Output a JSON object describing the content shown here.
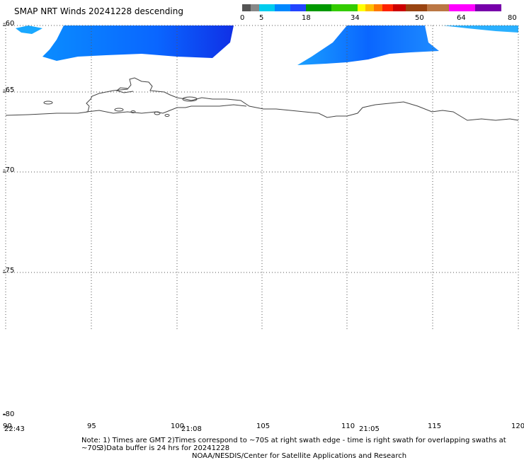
{
  "title": "SMAP NRT Winds  20241228 descending",
  "colorbar": {
    "segments": [
      {
        "color": "#555555"
      },
      {
        "color": "#888888"
      },
      {
        "color": "#00ccee"
      },
      {
        "color": "#0088ff"
      },
      {
        "color": "#2244ff"
      },
      {
        "color": "#009900"
      },
      {
        "color": "#33cc00"
      },
      {
        "color": "#ffff00"
      },
      {
        "color": "#ffbb00"
      },
      {
        "color": "#ff7700"
      },
      {
        "color": "#ff2200"
      },
      {
        "color": "#cc0000"
      },
      {
        "color": "#994411"
      },
      {
        "color": "#bb7744"
      },
      {
        "color": "#ff00ff"
      },
      {
        "color": "#7700aa"
      }
    ],
    "labels": [
      "0",
      "5",
      "18",
      "34",
      "50",
      "64",
      "80"
    ]
  },
  "axes": {
    "lat_labels": [
      "-60",
      "-65",
      "-70",
      "-75",
      "-80"
    ],
    "lon_labels": [
      "90",
      "95",
      "100",
      "105",
      "110",
      "115",
      "120"
    ]
  },
  "times": [
    "22:43",
    "21:08",
    "21:05"
  ],
  "notes": {
    "line1": "Note: 1) Times are GMT 2)Times correspond to ~70S at right swath edge - time is right swath for overlapping swaths at ~70S",
    "line2": "3)Data buffer is 24 hrs for 20241228",
    "line3": "NOAA/NESDIS/Center for Satellite Applications and Research"
  }
}
